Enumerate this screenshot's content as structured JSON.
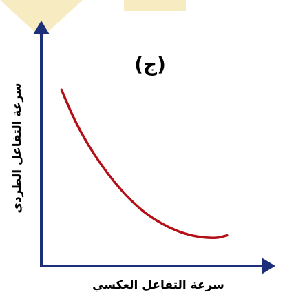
{
  "chart_data": {
    "type": "line",
    "panel_label": "(ج)",
    "xlabel": "سرعة التفاعل العكسي",
    "ylabel": "سرعة التفاعل الطردي",
    "grid": false,
    "legend": "none",
    "show_ticks": false,
    "xlim": [
      0,
      10
    ],
    "ylim": [
      0,
      10
    ],
    "series": [
      {
        "points": [
          [
            0.9,
            7.5
          ],
          [
            1.5,
            6.2
          ],
          [
            2.2,
            5.0
          ],
          [
            3.0,
            3.9
          ],
          [
            3.8,
            3.0
          ],
          [
            4.6,
            2.3
          ],
          [
            5.4,
            1.8
          ],
          [
            6.2,
            1.45
          ],
          [
            7.0,
            1.25
          ],
          [
            7.8,
            1.2
          ],
          [
            8.3,
            1.3
          ]
        ],
        "color": "#b30f16"
      }
    ],
    "colors": {
      "axis": "#1b2f7a",
      "curve": "#b30f16"
    }
  }
}
